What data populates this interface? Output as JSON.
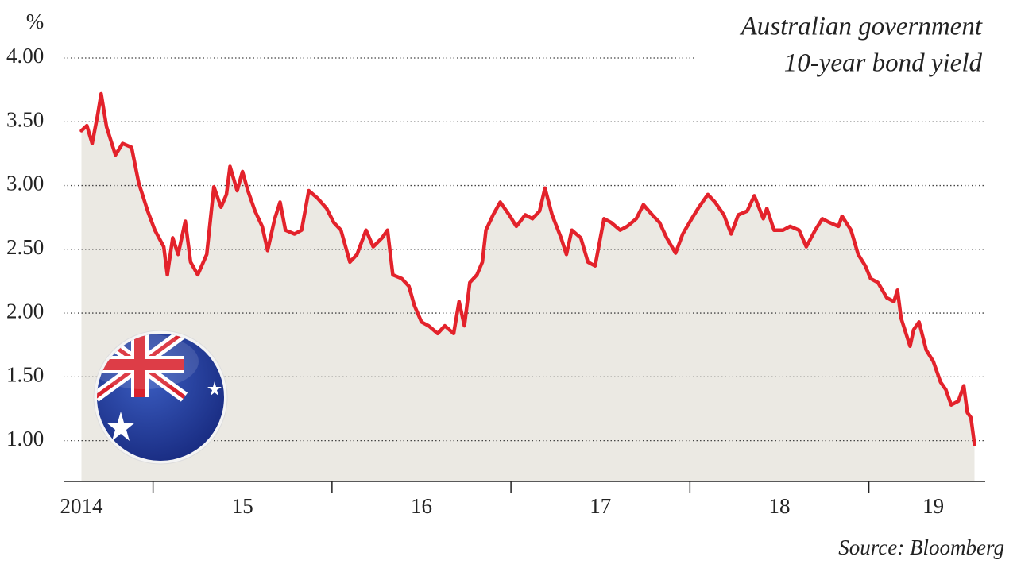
{
  "chart_data": {
    "type": "line",
    "title_lines": [
      "Australian government",
      "10-year bond yield"
    ],
    "y_unit": "%",
    "source": "Source: Bloomberg",
    "color": "#e3222b",
    "area_color": "#ebe9e3",
    "grid": true,
    "xlim": [
      2014.5,
      2019.65
    ],
    "xticks": [
      2015,
      2016,
      2017,
      2018,
      2019
    ],
    "x_labels": [
      {
        "value": 2014.6,
        "label": "2014"
      },
      {
        "value": 2015.5,
        "label": "15"
      },
      {
        "value": 2016.5,
        "label": "16"
      },
      {
        "value": 2017.5,
        "label": "17"
      },
      {
        "value": 2018.5,
        "label": "18"
      },
      {
        "value": 2019.36,
        "label": "19"
      }
    ],
    "ylim": [
      0.68,
      4.0
    ],
    "yticks": [
      {
        "value": 1,
        "label": "1.00"
      },
      {
        "value": 1.5,
        "label": "1.50"
      },
      {
        "value": 2,
        "label": "2.00"
      },
      {
        "value": 2.5,
        "label": "2.50"
      },
      {
        "value": 3,
        "label": "3.00"
      },
      {
        "value": 3.5,
        "label": "3.50"
      },
      {
        "value": 4,
        "label": "4.00"
      }
    ],
    "x": [
      2014.6,
      2014.63,
      2014.66,
      2014.69,
      2014.71,
      2014.74,
      2014.79,
      2014.83,
      2014.88,
      2014.92,
      2014.97,
      2015.01,
      2015.06,
      2015.08,
      2015.11,
      2015.14,
      2015.18,
      2015.21,
      2015.25,
      2015.3,
      2015.34,
      2015.38,
      2015.41,
      2015.43,
      2015.47,
      2015.5,
      2015.53,
      2015.57,
      2015.61,
      2015.64,
      2015.68,
      2015.71,
      2015.74,
      2015.79,
      2015.83,
      2015.87,
      2015.92,
      2015.97,
      2016.01,
      2016.05,
      2016.1,
      2016.14,
      2016.19,
      2016.23,
      2016.28,
      2016.31,
      2016.34,
      2016.39,
      2016.43,
      2016.46,
      2016.5,
      2016.54,
      2016.59,
      2016.63,
      2016.68,
      2016.71,
      2016.74,
      2016.77,
      2016.81,
      2016.84,
      2016.86,
      2016.9,
      2016.94,
      2016.99,
      2017.03,
      2017.08,
      2017.12,
      2017.16,
      2017.19,
      2017.23,
      2017.28,
      2017.31,
      2017.34,
      2017.39,
      2017.43,
      2017.47,
      2017.52,
      2017.56,
      2017.61,
      2017.65,
      2017.7,
      2017.74,
      2017.79,
      2017.83,
      2017.87,
      2017.92,
      2017.96,
      2018.01,
      2018.05,
      2018.1,
      2018.14,
      2018.19,
      2018.23,
      2018.27,
      2018.32,
      2018.36,
      2018.41,
      2018.43,
      2018.47,
      2018.52,
      2018.56,
      2018.61,
      2018.65,
      2018.7,
      2018.74,
      2018.78,
      2018.83,
      2018.85,
      2018.9,
      2018.94,
      2018.98,
      2019.01,
      2019.05,
      2019.1,
      2019.14,
      2019.16,
      2019.18,
      2019.23,
      2019.25,
      2019.28,
      2019.32,
      2019.36,
      2019.4,
      2019.43,
      2019.46,
      2019.5,
      2019.53,
      2019.55,
      2019.57,
      2019.59
    ],
    "values": [
      3.43,
      3.47,
      3.33,
      3.55,
      3.72,
      3.46,
      3.24,
      3.33,
      3.3,
      3.02,
      2.8,
      2.65,
      2.52,
      2.3,
      2.59,
      2.46,
      2.72,
      2.4,
      2.3,
      2.46,
      2.99,
      2.83,
      2.93,
      3.15,
      2.96,
      3.11,
      2.96,
      2.8,
      2.68,
      2.49,
      2.74,
      2.87,
      2.65,
      2.62,
      2.65,
      2.96,
      2.9,
      2.82,
      2.71,
      2.65,
      2.4,
      2.46,
      2.65,
      2.52,
      2.59,
      2.65,
      2.3,
      2.27,
      2.21,
      2.06,
      1.93,
      1.9,
      1.84,
      1.9,
      1.84,
      2.09,
      1.9,
      2.24,
      2.3,
      2.4,
      2.65,
      2.77,
      2.87,
      2.77,
      2.68,
      2.77,
      2.74,
      2.8,
      2.98,
      2.77,
      2.59,
      2.46,
      2.65,
      2.59,
      2.4,
      2.37,
      2.74,
      2.71,
      2.65,
      2.68,
      2.74,
      2.85,
      2.77,
      2.71,
      2.59,
      2.47,
      2.62,
      2.74,
      2.83,
      2.93,
      2.87,
      2.77,
      2.62,
      2.77,
      2.8,
      2.92,
      2.74,
      2.82,
      2.65,
      2.65,
      2.68,
      2.65,
      2.52,
      2.65,
      2.74,
      2.71,
      2.68,
      2.76,
      2.65,
      2.46,
      2.37,
      2.27,
      2.24,
      2.12,
      2.09,
      2.18,
      1.96,
      1.74,
      1.87,
      1.93,
      1.71,
      1.62,
      1.46,
      1.4,
      1.28,
      1.31,
      1.43,
      1.22,
      1.18,
      0.97
    ]
  }
}
